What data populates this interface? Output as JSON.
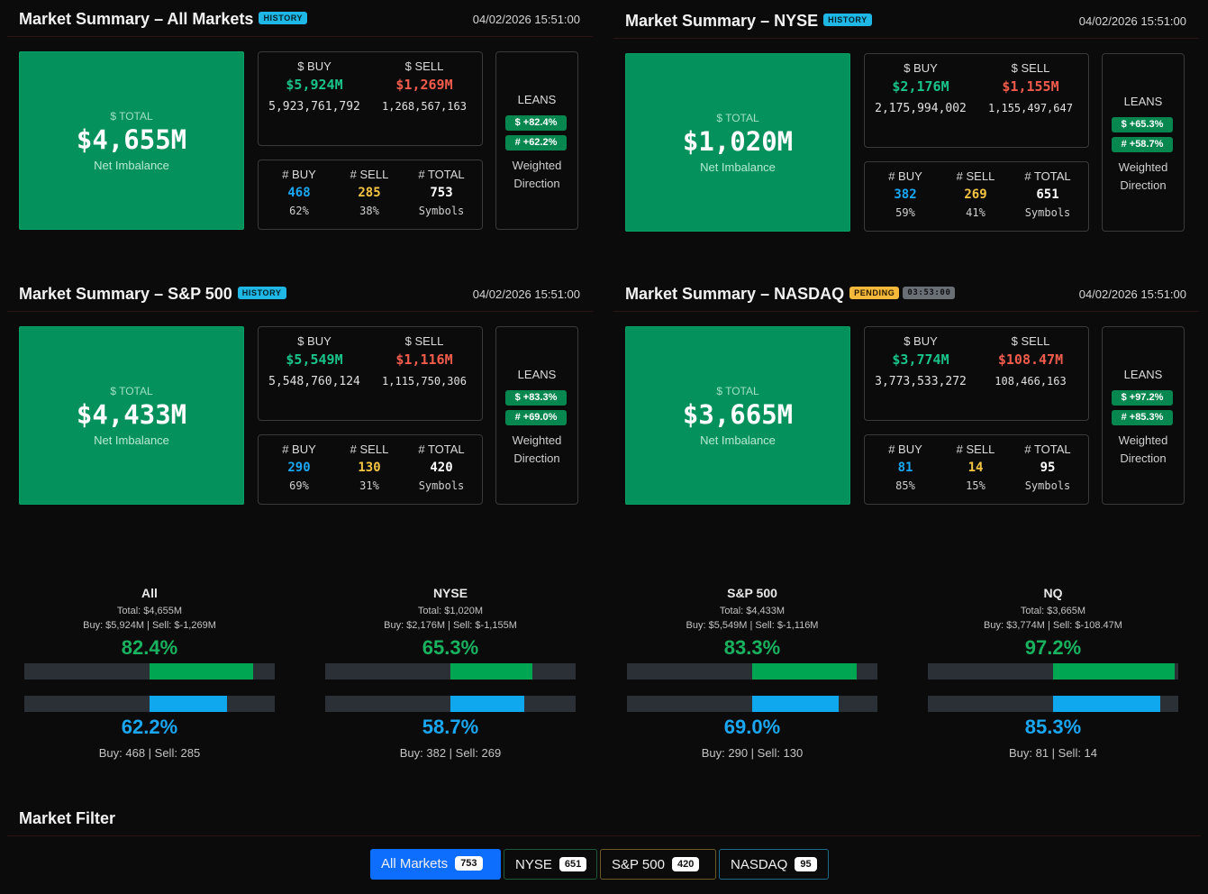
{
  "panels": [
    {
      "title": "Market Summary – All Markets",
      "status": "HISTORY",
      "timer": "",
      "timestamp": "04/02/2026 15:51:00",
      "total_label": "$ TOTAL",
      "total": "$4,655M",
      "total_sub": "Net Imbalance",
      "buy_label": "$ BUY",
      "buy": "$5,924M",
      "buy_raw": "5,923,761,792",
      "sell_label": "$ SELL",
      "sell": "$1,269M",
      "sell_raw": "1,268,567,163",
      "nbuy_label": "# BUY",
      "nbuy": "468",
      "nbuy_pct": "62%",
      "nsell_label": "# SELL",
      "nsell": "285",
      "nsell_pct": "38%",
      "ntotal_label": "# TOTAL",
      "ntotal": "753",
      "ntotal_sub": "Symbols",
      "leans_label": "LEANS",
      "lean_dollar": "$ +82.4%",
      "lean_count": "# +62.2%",
      "leans_sub": "Weighted Direction"
    },
    {
      "title": "Market Summary – NYSE",
      "status": "HISTORY",
      "timer": "",
      "timestamp": "04/02/2026 15:51:00",
      "total_label": "$ TOTAL",
      "total": "$1,020M",
      "total_sub": "Net Imbalance",
      "buy_label": "$ BUY",
      "buy": "$2,176M",
      "buy_raw": "2,175,994,002",
      "sell_label": "$ SELL",
      "sell": "$1,155M",
      "sell_raw": "1,155,497,647",
      "nbuy_label": "# BUY",
      "nbuy": "382",
      "nbuy_pct": "59%",
      "nsell_label": "# SELL",
      "nsell": "269",
      "nsell_pct": "41%",
      "ntotal_label": "# TOTAL",
      "ntotal": "651",
      "ntotal_sub": "Symbols",
      "leans_label": "LEANS",
      "lean_dollar": "$ +65.3%",
      "lean_count": "# +58.7%",
      "leans_sub": "Weighted Direction"
    },
    {
      "title": "Market Summary – S&P 500",
      "status": "HISTORY",
      "timer": "",
      "timestamp": "04/02/2026 15:51:00",
      "total_label": "$ TOTAL",
      "total": "$4,433M",
      "total_sub": "Net Imbalance",
      "buy_label": "$ BUY",
      "buy": "$5,549M",
      "buy_raw": "5,548,760,124",
      "sell_label": "$ SELL",
      "sell": "$1,116M",
      "sell_raw": "1,115,750,306",
      "nbuy_label": "# BUY",
      "nbuy": "290",
      "nbuy_pct": "69%",
      "nsell_label": "# SELL",
      "nsell": "130",
      "nsell_pct": "31%",
      "ntotal_label": "# TOTAL",
      "ntotal": "420",
      "ntotal_sub": "Symbols",
      "leans_label": "LEANS",
      "lean_dollar": "$ +83.3%",
      "lean_count": "# +69.0%",
      "leans_sub": "Weighted Direction"
    },
    {
      "title": "Market Summary – NASDAQ",
      "status": "PENDING",
      "timer": "03:53:00",
      "timestamp": "04/02/2026 15:51:00",
      "total_label": "$ TOTAL",
      "total": "$3,665M",
      "total_sub": "Net Imbalance",
      "buy_label": "$ BUY",
      "buy": "$3,774M",
      "buy_raw": "3,773,533,272",
      "sell_label": "$ SELL",
      "sell": "$108.47M",
      "sell_raw": "108,466,163",
      "nbuy_label": "# BUY",
      "nbuy": "81",
      "nbuy_pct": "85%",
      "nsell_label": "# SELL",
      "nsell": "14",
      "nsell_pct": "15%",
      "ntotal_label": "# TOTAL",
      "ntotal": "95",
      "ntotal_sub": "Symbols",
      "leans_label": "LEANS",
      "lean_dollar": "$ +97.2%",
      "lean_count": "# +85.3%",
      "leans_sub": "Weighted Direction"
    }
  ],
  "gauges": [
    {
      "name": "All",
      "total_line": "Total: $4,655M",
      "buysell_line": "Buy: $5,924M | Sell: $-1,269M",
      "dollar_pct_label": "82.4%",
      "dollar_pct": 82.4,
      "count_pct_label": "62.2%",
      "count_pct": 62.2,
      "counts_line": "Buy: 468 | Sell: 285"
    },
    {
      "name": "NYSE",
      "total_line": "Total: $1,020M",
      "buysell_line": "Buy: $2,176M | Sell: $-1,155M",
      "dollar_pct_label": "65.3%",
      "dollar_pct": 65.3,
      "count_pct_label": "58.7%",
      "count_pct": 58.7,
      "counts_line": "Buy: 382 | Sell: 269"
    },
    {
      "name": "S&P 500",
      "total_line": "Total: $4,433M",
      "buysell_line": "Buy: $5,549M | Sell: $-1,116M",
      "dollar_pct_label": "83.3%",
      "dollar_pct": 83.3,
      "count_pct_label": "69.0%",
      "count_pct": 69.0,
      "counts_line": "Buy: 290 | Sell: 130"
    },
    {
      "name": "NQ",
      "total_line": "Total: $3,665M",
      "buysell_line": "Buy: $3,774M | Sell: $-108.47M",
      "dollar_pct_label": "97.2%",
      "dollar_pct": 97.2,
      "count_pct_label": "85.3%",
      "count_pct": 85.3,
      "counts_line": "Buy: 81 | Sell: 14"
    }
  ],
  "filter": {
    "title": "Market Filter",
    "buttons": [
      {
        "label": "All Markets",
        "count": "753",
        "active": true
      },
      {
        "label": "NYSE",
        "count": "651",
        "active": false
      },
      {
        "label": "S&P 500",
        "count": "420",
        "active": false
      },
      {
        "label": "NASDAQ",
        "count": "95",
        "active": false
      }
    ]
  },
  "colors": {
    "background": "#0b0b0c",
    "total_box": "#04915b",
    "buy_dollar": "#19c38a",
    "sell_dollar": "#f25c4c",
    "buy_count": "#1aa7f2",
    "sell_count": "#f5c542",
    "history_badge": "#1fb8e6",
    "pending_badge": "#f4b93a",
    "active_filter": "#0d6efd"
  }
}
